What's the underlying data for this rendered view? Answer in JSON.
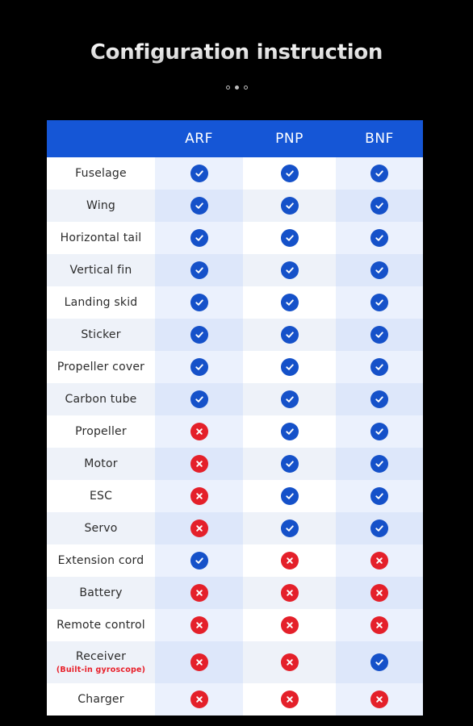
{
  "title": "Configuration instruction",
  "pagination": {
    "count": 3,
    "active": 1
  },
  "colors": {
    "header_bg": "#1556d6",
    "check": "#1551c9",
    "cross": "#e4202a"
  },
  "columns": [
    "ARF",
    "PNP",
    "BNF"
  ],
  "rows": [
    {
      "label": "Fuselage",
      "values": [
        "check",
        "check",
        "check"
      ]
    },
    {
      "label": "Wing",
      "values": [
        "check",
        "check",
        "check"
      ]
    },
    {
      "label": "Horizontal tail",
      "values": [
        "check",
        "check",
        "check"
      ]
    },
    {
      "label": "Vertical fin",
      "values": [
        "check",
        "check",
        "check"
      ]
    },
    {
      "label": "Landing skid",
      "values": [
        "check",
        "check",
        "check"
      ]
    },
    {
      "label": "Sticker",
      "values": [
        "check",
        "check",
        "check"
      ]
    },
    {
      "label": "Propeller cover",
      "values": [
        "check",
        "check",
        "check"
      ]
    },
    {
      "label": "Carbon tube",
      "values": [
        "check",
        "check",
        "check"
      ]
    },
    {
      "label": "Propeller",
      "values": [
        "cross",
        "check",
        "check"
      ]
    },
    {
      "label": "Motor",
      "values": [
        "cross",
        "check",
        "check"
      ]
    },
    {
      "label": "ESC",
      "values": [
        "cross",
        "check",
        "check"
      ]
    },
    {
      "label": "Servo",
      "values": [
        "cross",
        "check",
        "check"
      ]
    },
    {
      "label": "Extension cord",
      "values": [
        "check",
        "cross",
        "cross"
      ]
    },
    {
      "label": "Battery",
      "values": [
        "cross",
        "cross",
        "cross"
      ]
    },
    {
      "label": "Remote control",
      "values": [
        "cross",
        "cross",
        "cross"
      ]
    },
    {
      "label": "Receiver",
      "sublabel": "(Built-in gyroscope)",
      "values": [
        "cross",
        "cross",
        "check"
      ]
    },
    {
      "label": "Charger",
      "values": [
        "cross",
        "cross",
        "cross"
      ]
    }
  ]
}
